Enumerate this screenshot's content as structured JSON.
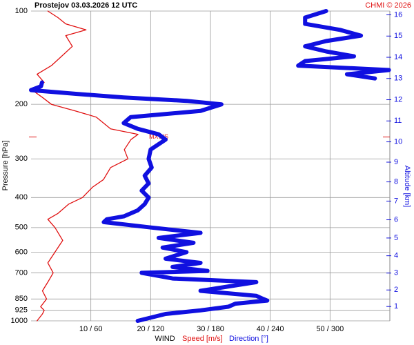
{
  "chart_data": {
    "type": "wind-profile",
    "title": "Prostejov   03.03.2026 12 UTC",
    "credit": "CHMI © 2026",
    "y_label": "Pressure [hPa]",
    "y2_label": "Altitude [km]",
    "x_label": "WIND",
    "annotation": "MXWS",
    "max_wind_level": 255,
    "log_y": true,
    "grid": true,
    "ylim": [
      1000,
      100
    ],
    "yticks": [
      100,
      200,
      300,
      400,
      500,
      600,
      700,
      850,
      925,
      1000
    ],
    "y2ticks": [
      1,
      2,
      3,
      4,
      5,
      6,
      7,
      8,
      9,
      10,
      11,
      12,
      13,
      14,
      15,
      16
    ],
    "xlim": [
      0,
      60
    ],
    "xticks": [
      {
        "value": 10,
        "label": "10 / 60"
      },
      {
        "value": 20,
        "label": "20 / 120"
      },
      {
        "value": 30,
        "label": "30 / 180"
      },
      {
        "value": 40,
        "label": "40 / 240"
      },
      {
        "value": 50,
        "label": "50 / 300"
      }
    ],
    "x2lim": [
      0,
      360
    ],
    "series": [
      {
        "name": "Speed [m/s]",
        "color": "#e01010",
        "y": [
          1000,
          950,
          925,
          900,
          850,
          800,
          750,
          700,
          650,
          600,
          550,
          500,
          470,
          450,
          420,
          400,
          370,
          350,
          320,
          300,
          280,
          260,
          250,
          240,
          220,
          210,
          200,
          190,
          180,
          170,
          160,
          150,
          140,
          130,
          120,
          115,
          110,
          105,
          100
        ],
        "values": [
          1,
          1.9,
          2.2,
          1.6,
          2.6,
          1.9,
          2.8,
          3.7,
          2.8,
          4,
          5.3,
          4,
          2.8,
          4.5,
          6.3,
          8.6,
          10.3,
          12.1,
          13.3,
          16.2,
          15.6,
          16.7,
          17.9,
          13.3,
          10.9,
          7.4,
          3.4,
          1.9,
          0.2,
          2.2,
          1,
          3.4,
          5.1,
          6.9,
          5.8,
          9.2,
          5.8,
          4.5,
          2.8
        ]
      },
      {
        "name": "Direction [°]",
        "color": "#1010e0",
        "axis": "x2",
        "y": [
          1000,
          950,
          925,
          900,
          880,
          860,
          850,
          830,
          800,
          750,
          730,
          700,
          690,
          670,
          650,
          630,
          600,
          580,
          560,
          540,
          520,
          500,
          480,
          470,
          460,
          440,
          420,
          400,
          380,
          360,
          340,
          320,
          300,
          280,
          260,
          250,
          240,
          230,
          220,
          210,
          200,
          195,
          190,
          185,
          180,
          175,
          170,
          167,
          165,
          160,
          155,
          150,
          145,
          140,
          135,
          130,
          125,
          120,
          115,
          110,
          105,
          100
        ],
        "values": [
          107,
          135,
          170,
          198,
          205,
          237,
          233,
          226,
          170,
          226,
          142,
          111,
          177,
          142,
          170,
          135,
          156,
          132,
          163,
          128,
          170,
          121,
          73,
          76,
          93,
          107,
          114,
          118,
          111,
          118,
          114,
          121,
          118,
          120,
          135,
          128,
          107,
          93,
          100,
          170,
          191,
          156,
          93,
          45,
          0,
          10,
          11,
          null,
          345,
          317,
          359,
          268,
          275,
          324,
          296,
          275,
          296,
          331,
          310,
          275,
          275,
          296
        ]
      }
    ]
  }
}
